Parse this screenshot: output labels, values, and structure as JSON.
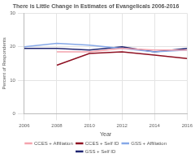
{
  "chart_data": {
    "type": "line",
    "title": "There is Little Change in Estimates of Evangelicals 2006-2016",
    "x_label": "Year",
    "y_label": "Percent of Respondents",
    "x": [
      2006,
      2008,
      2010,
      2012,
      2014,
      2016
    ],
    "series": [
      {
        "name": "CCES + Affiliation",
        "color": "#f4a3ad",
        "values": [
          null,
          18.5,
          18.5,
          19.5,
          19,
          19
        ]
      },
      {
        "name": "CCES + Self ID",
        "color": "#8e1022",
        "values": [
          null,
          14.5,
          18,
          18.5,
          17.5,
          16.5
        ]
      },
      {
        "name": "GSS + Affiliation",
        "color": "#86a8e8",
        "values": [
          20,
          21,
          20.5,
          19.5,
          18.5,
          19
        ]
      },
      {
        "name": "GSS + Self ID",
        "color": "#1f2470",
        "values": [
          19.5,
          19.5,
          19,
          20,
          18.5,
          19.5
        ]
      }
    ],
    "xlim": [
      2006,
      2016
    ],
    "xticks": [
      2006,
      2008,
      2010,
      2012,
      2014,
      2016
    ],
    "ylim": [
      0,
      30
    ],
    "yticks": [
      0,
      10,
      20,
      30
    ],
    "grid": true,
    "legend": "bottom"
  }
}
